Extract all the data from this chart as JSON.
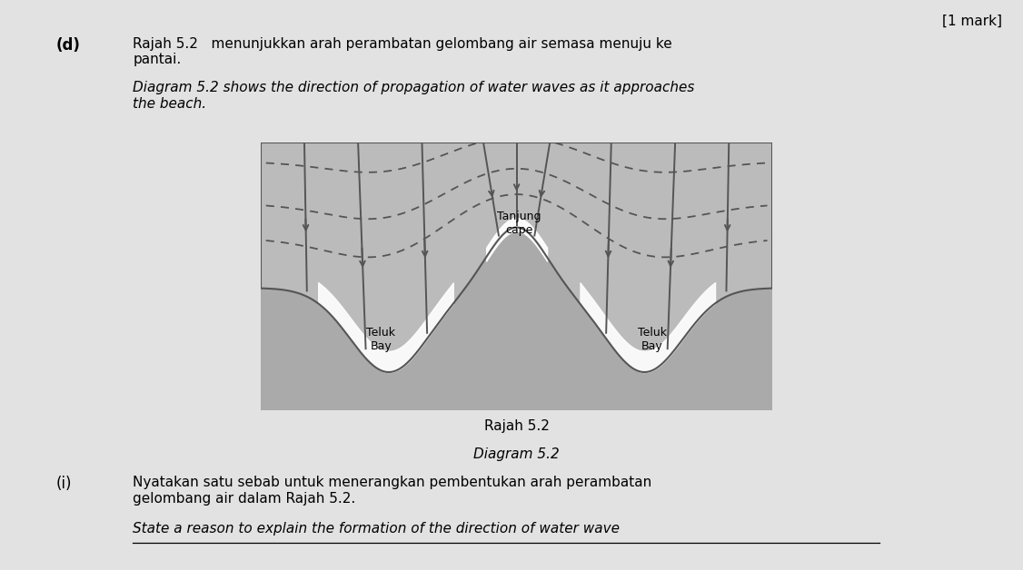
{
  "background_color": "#d8d8d8",
  "page_background": "#e2e2e2",
  "title_above": "[1 mark]",
  "caption_malay": "Rajah 5.2",
  "caption_english": "Diagram 5.2",
  "label_cape": "Tanjung\ncape",
  "label_bay_left": "Teluk\nBay",
  "label_bay_right": "Teluk\nBay",
  "line_color": "#555555",
  "land_color": "#aaaaaa",
  "sea_color": "#bbbbbb",
  "beach_color": "#ffffff",
  "box_color": "#999999"
}
